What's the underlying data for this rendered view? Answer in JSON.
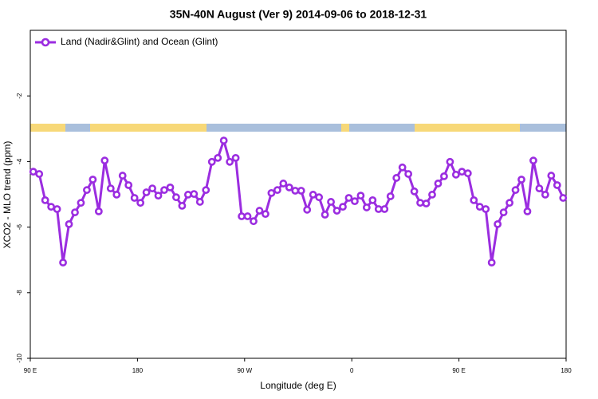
{
  "chart_data": {
    "type": "line",
    "title": "35N-40N August (Ver 9)   2014-09-06 to 2018-12-31",
    "xlabel": "Longitude (deg E)",
    "ylabel": "XCO2 - MLO trend (ppm)",
    "xlim": [
      90,
      540
    ],
    "ylim": [
      -10,
      0
    ],
    "xticks": [
      {
        "value": 90,
        "label": "90 E"
      },
      180,
      {
        "value": 270,
        "label": "90 W"
      },
      {
        "value": 360,
        "label": "0"
      },
      {
        "value": 450,
        "label": "90 E"
      },
      {
        "value": 540,
        "label": "180"
      }
    ],
    "yticks": [
      -10,
      -8,
      -6,
      -4,
      -2
    ],
    "legend": "top-left",
    "x": [
      92.5,
      97.5,
      102.5,
      107.5,
      112.5,
      117.5,
      122.5,
      127.5,
      132.5,
      137.5,
      142.5,
      147.5,
      152.5,
      157.5,
      162.5,
      167.5,
      172.5,
      177.5,
      182.5,
      187.5,
      192.5,
      197.5,
      202.5,
      207.5,
      212.5,
      217.5,
      222.5,
      227.5,
      232.5,
      237.5,
      242.5,
      247.5,
      252.5,
      257.5,
      262.5,
      267.5,
      272.5,
      277.5,
      282.5,
      287.5,
      292.5,
      297.5,
      302.5,
      307.5,
      312.5,
      317.5,
      322.5,
      327.5,
      332.5,
      337.5,
      342.5,
      347.5,
      352.5,
      357.5,
      362.5,
      367.5,
      372.5,
      377.5,
      382.5,
      387.5,
      392.5,
      397.5,
      402.5,
      407.5,
      412.5,
      417.5,
      422.5,
      427.5,
      432.5,
      437.5,
      442.5,
      447.5,
      452.5,
      457.5,
      462.5,
      467.5,
      472.5,
      477.5,
      482.5,
      487.5,
      492.5,
      497.5,
      502.5,
      507.5,
      512.5,
      517.5,
      522.5,
      527.5,
      532.5,
      537.5
    ],
    "series": [
      {
        "name": "Land (Nadir&Glint) and Ocean (Glint)",
        "color": "#9b2de0",
        "values": [
          -4.31,
          -4.38,
          -5.18,
          -5.38,
          -5.45,
          -7.08,
          -5.91,
          -5.55,
          -5.26,
          -4.87,
          -4.55,
          -5.52,
          -3.97,
          -4.82,
          -5.01,
          -4.43,
          -4.72,
          -5.11,
          -5.26,
          -4.94,
          -4.82,
          -5.04,
          -4.87,
          -4.79,
          -5.09,
          -5.35,
          -5.01,
          -4.99,
          -5.23,
          -4.87,
          -4.01,
          -3.89,
          -3.36,
          -4.01,
          -3.89,
          -5.67,
          -5.67,
          -5.82,
          -5.5,
          -5.6,
          -4.96,
          -4.87,
          -4.67,
          -4.79,
          -4.89,
          -4.89,
          -5.47,
          -5.01,
          -5.09,
          -5.62,
          -5.23,
          -5.5,
          -5.38,
          -5.11,
          -5.21,
          -5.04,
          -5.4,
          -5.18,
          -5.45,
          -5.45,
          -5.06,
          -4.5,
          -4.18,
          -4.38,
          -4.91,
          -5.26,
          -5.28,
          -5.01,
          -4.67,
          -4.45,
          -4.01,
          -4.4,
          -4.31,
          -4.36,
          -5.18,
          -5.38,
          -5.45,
          -7.08,
          -5.91,
          -5.55,
          -5.26,
          -4.87,
          -4.55,
          -5.52,
          -3.97,
          -4.82,
          -5.01,
          -4.43,
          -4.72,
          -5.11
        ]
      }
    ]
  }
}
